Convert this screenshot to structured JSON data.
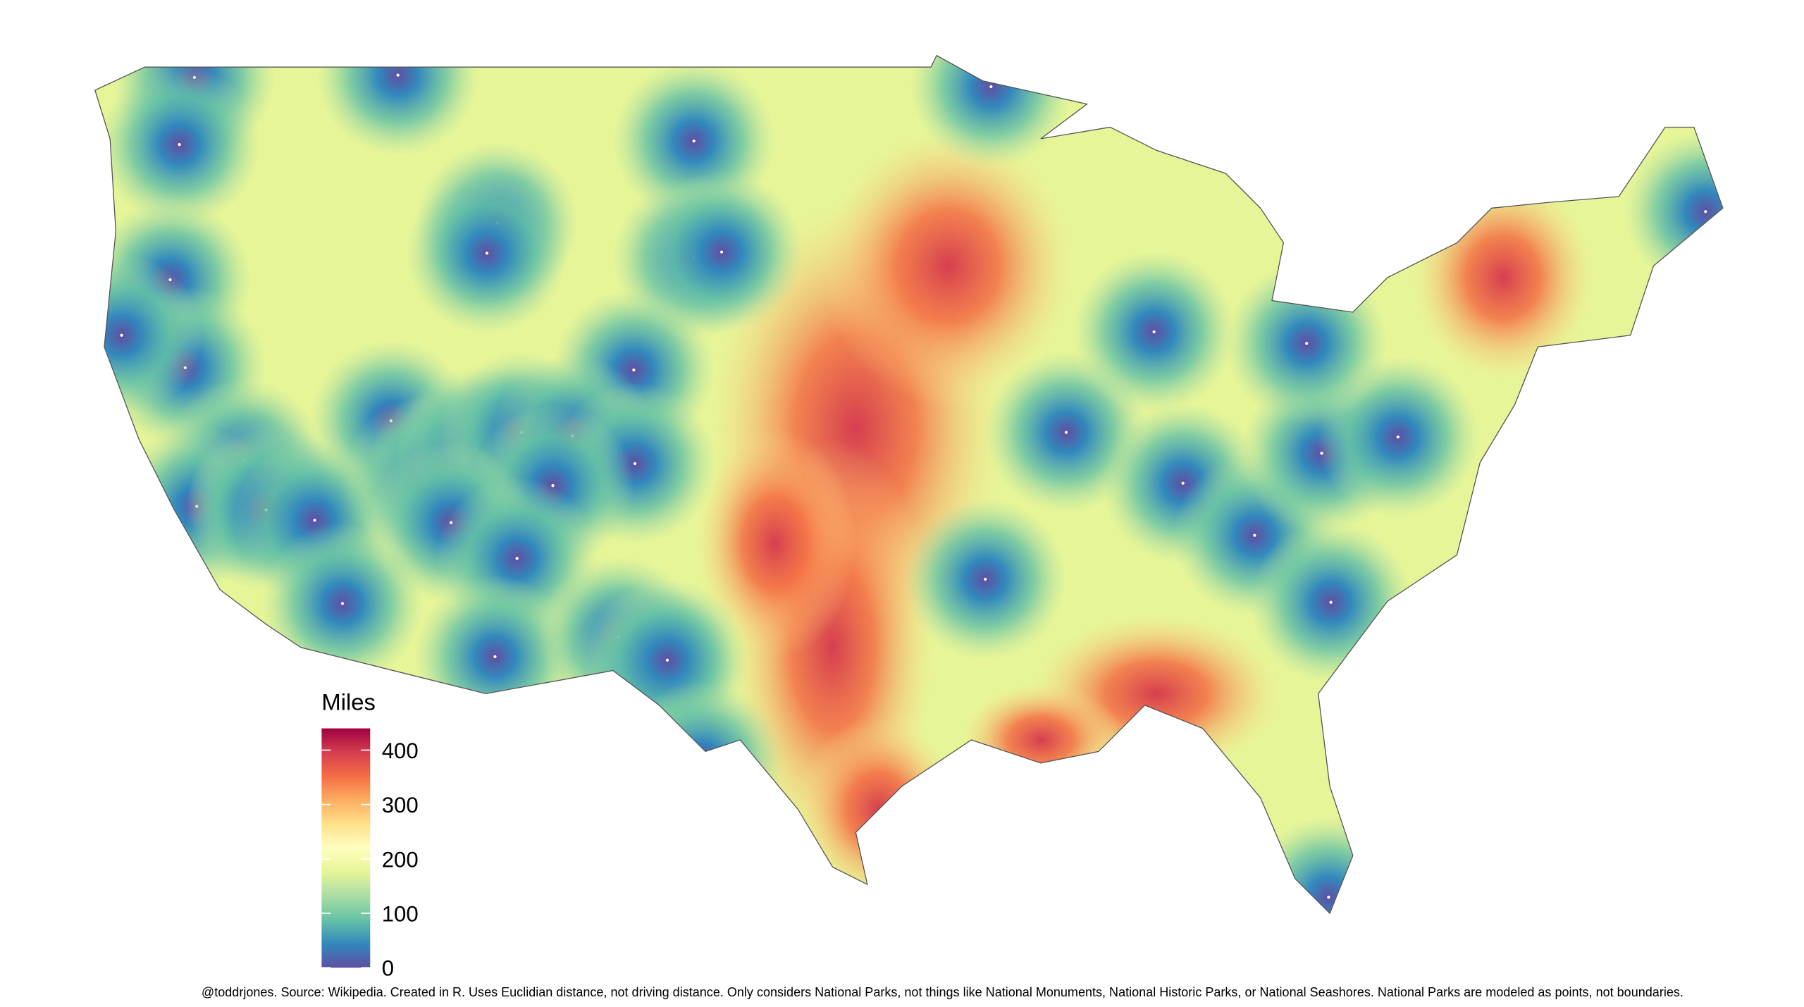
{
  "legend": {
    "title": "Miles",
    "range": [
      0,
      440
    ],
    "ticks": [
      0,
      100,
      200,
      300,
      400
    ],
    "colors": [
      "#5e4fa2",
      "#3288bd",
      "#66c2a5",
      "#abdda4",
      "#e6f598",
      "#ffffbf",
      "#fee08b",
      "#fdae61",
      "#f46d43",
      "#d53e4f",
      "#9e0142"
    ]
  },
  "caption": "@toddrjones. Source: Wikipedia. Created in R. Uses Euclidian distance, not driving distance. Only considers National Parks, not things like National Monuments, National Historic Parks, or National Seashores. National Parks are modeled as points, not boundaries."
}
